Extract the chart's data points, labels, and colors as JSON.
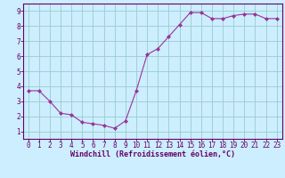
{
  "x": [
    0,
    1,
    2,
    3,
    4,
    5,
    6,
    7,
    8,
    9,
    10,
    11,
    12,
    13,
    14,
    15,
    16,
    17,
    18,
    19,
    20,
    21,
    22,
    23
  ],
  "y": [
    3.7,
    3.7,
    3.0,
    2.2,
    2.1,
    1.6,
    1.5,
    1.4,
    1.2,
    1.7,
    3.7,
    6.1,
    6.5,
    7.3,
    8.1,
    8.9,
    8.9,
    8.5,
    8.5,
    8.7,
    8.8,
    8.8,
    8.5,
    8.5
  ],
  "line_color": "#993399",
  "marker": "D",
  "marker_size": 2,
  "background_color": "#cceeff",
  "grid_color": "#99cccc",
  "xlabel": "Windchill (Refroidissement éolien,°C)",
  "xlim": [
    -0.5,
    23.5
  ],
  "ylim": [
    0.5,
    9.5
  ],
  "yticks": [
    1,
    2,
    3,
    4,
    5,
    6,
    7,
    8,
    9
  ],
  "xticks": [
    0,
    1,
    2,
    3,
    4,
    5,
    6,
    7,
    8,
    9,
    10,
    11,
    12,
    13,
    14,
    15,
    16,
    17,
    18,
    19,
    20,
    21,
    22,
    23
  ],
  "label_color": "#660066",
  "tick_color": "#660066",
  "spine_color": "#660066",
  "xlabel_fontsize": 6,
  "tick_fontsize": 5.5
}
